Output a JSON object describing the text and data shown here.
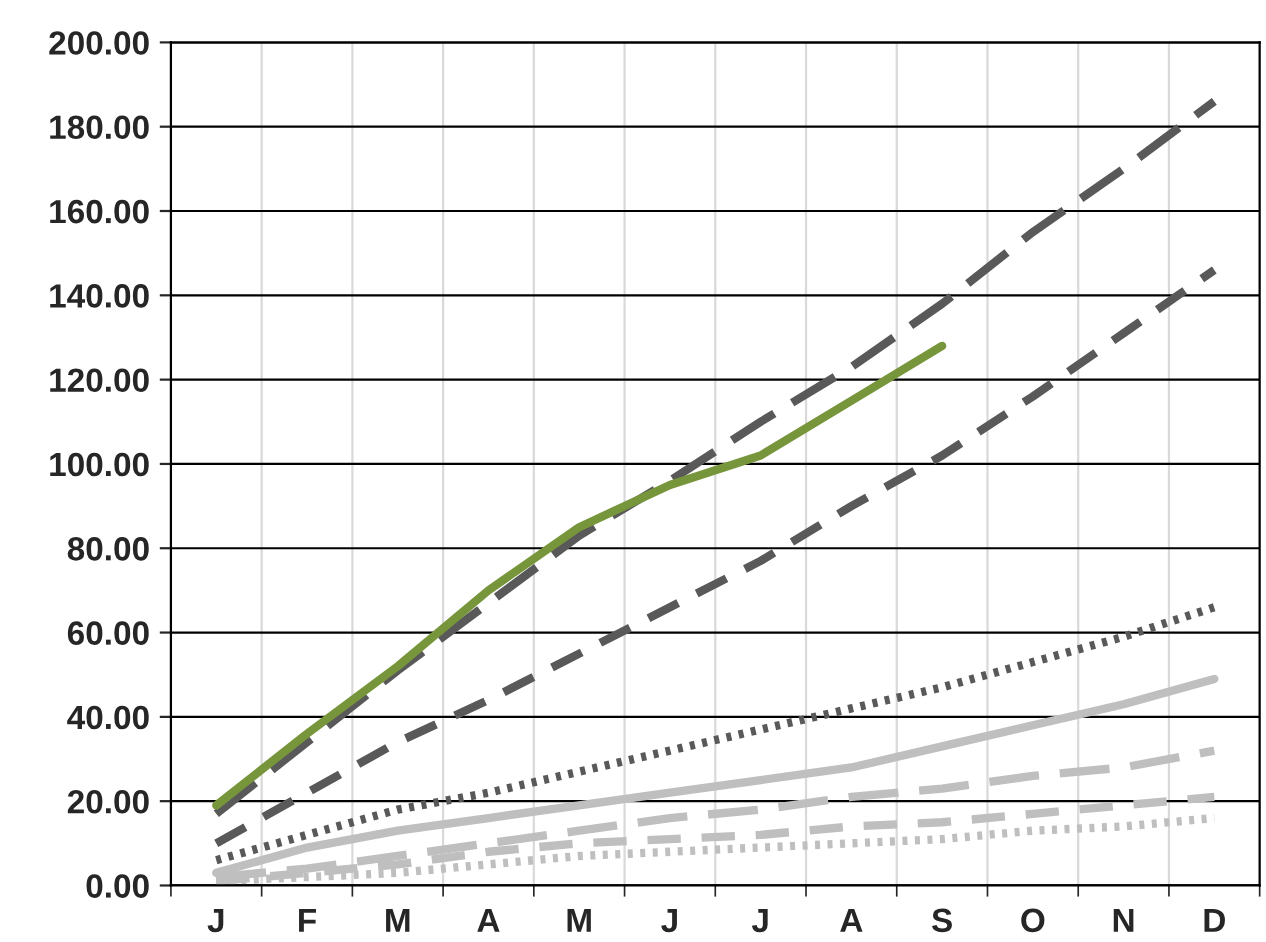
{
  "chart_data": {
    "type": "line",
    "categories": [
      "J",
      "F",
      "M",
      "A",
      "M",
      "J",
      "J",
      "A",
      "S",
      "O",
      "N",
      "D"
    ],
    "series": [
      {
        "color": "#bfbfbf",
        "line_style": "dotted",
        "values": [
          1,
          2,
          3,
          5,
          7,
          8,
          9,
          10,
          11,
          13,
          14,
          16
        ]
      },
      {
        "color": "#bfbfbf",
        "line_style": "dashed",
        "values": [
          1,
          3,
          5,
          8,
          10,
          11,
          12,
          14,
          15,
          17,
          19,
          21
        ]
      },
      {
        "color": "#bfbfbf",
        "line_style": "longdash",
        "values": [
          2,
          4,
          7,
          10,
          13,
          16,
          18,
          21,
          23,
          26,
          28,
          32
        ]
      },
      {
        "color": "#bfbfbf",
        "line_style": "solid",
        "values": [
          3,
          9,
          13,
          16,
          19,
          22,
          25,
          28,
          33,
          38,
          43,
          49
        ]
      },
      {
        "color": "#595959",
        "line_style": "dotted",
        "values": [
          6,
          12,
          18,
          22,
          27,
          32,
          37,
          42,
          47,
          53,
          59,
          66
        ]
      },
      {
        "color": "#595959",
        "line_style": "dashed",
        "values": [
          10,
          22,
          34,
          44,
          55,
          66,
          77,
          90,
          102,
          116,
          131,
          146
        ]
      },
      {
        "color": "#595959",
        "line_style": "longdash",
        "values": [
          17,
          34,
          51,
          67,
          83,
          96,
          110,
          123,
          138,
          155,
          170,
          186
        ]
      },
      {
        "color": "#77963c",
        "line_style": "solid",
        "values": [
          19,
          36,
          52,
          70,
          85,
          95,
          102,
          115,
          128,
          null,
          null,
          null
        ]
      }
    ],
    "ylim": [
      0,
      200
    ],
    "yticks": [
      {
        "value": 0,
        "label": "0.00"
      },
      {
        "value": 20,
        "label": "20.00"
      },
      {
        "value": 40,
        "label": "40.00"
      },
      {
        "value": 60,
        "label": "60.00"
      },
      {
        "value": 80,
        "label": "80.00"
      },
      {
        "value": 100,
        "label": "100.00"
      },
      {
        "value": 120,
        "label": "120.00"
      },
      {
        "value": 140,
        "label": "140.00"
      },
      {
        "value": 160,
        "label": "160.00"
      },
      {
        "value": 180,
        "label": "180.00"
      },
      {
        "value": 200,
        "label": "200.00"
      }
    ],
    "grid": true,
    "marker": "none"
  }
}
